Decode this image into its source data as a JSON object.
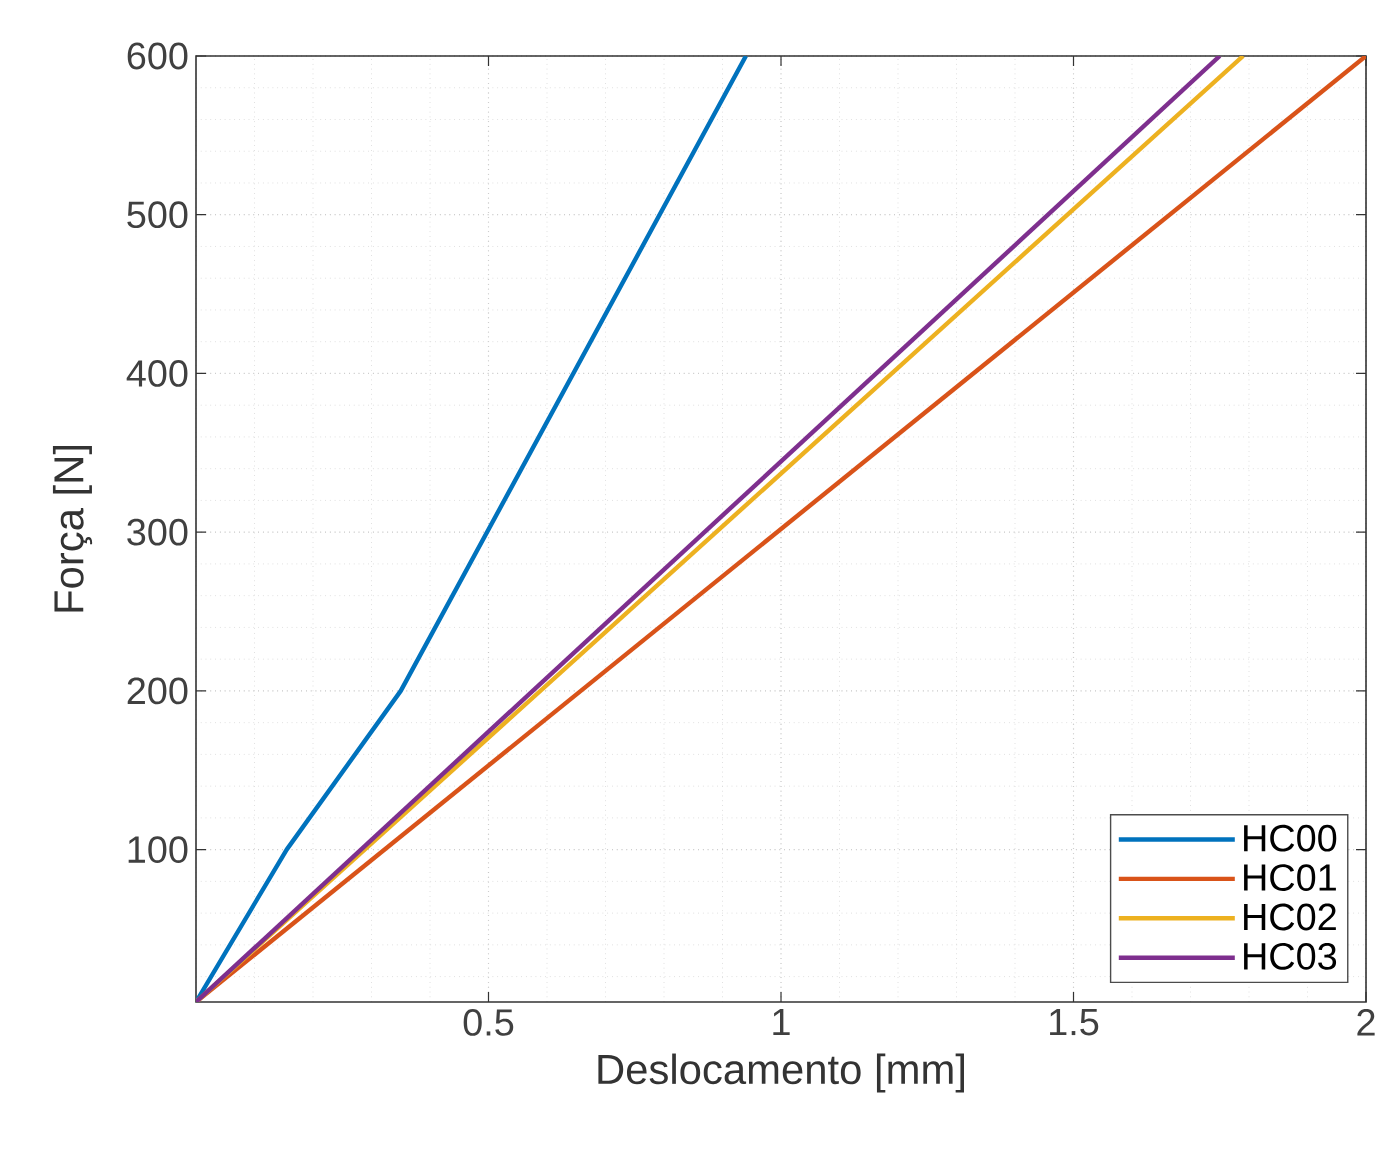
{
  "chart_data": {
    "type": "line",
    "xlabel": "Deslocamento [mm]",
    "ylabel": "Força [N]",
    "xlim": [
      0,
      2
    ],
    "ylim": [
      4,
      600
    ],
    "xticks": [
      0.5,
      1,
      1.5,
      2
    ],
    "yticks": [
      100,
      200,
      300,
      400,
      500,
      600
    ],
    "grid": true,
    "legend": "bottom right",
    "marker": "none",
    "line_style": "solid",
    "series": [
      {
        "name": "HC00",
        "color": "#0072bd",
        "x": [
          0,
          0.155,
          0.35,
          0.94
        ],
        "values": [
          4,
          100,
          200,
          600
        ]
      },
      {
        "name": "HC01",
        "color": "#d95319",
        "x": [
          0,
          2.0
        ],
        "values": [
          4,
          600
        ]
      },
      {
        "name": "HC02",
        "color": "#edb120",
        "x": [
          0,
          1.79
        ],
        "values": [
          4,
          600
        ]
      },
      {
        "name": "HC03",
        "color": "#7e2f8e",
        "x": [
          0,
          1.75
        ],
        "values": [
          4,
          600
        ]
      }
    ]
  }
}
